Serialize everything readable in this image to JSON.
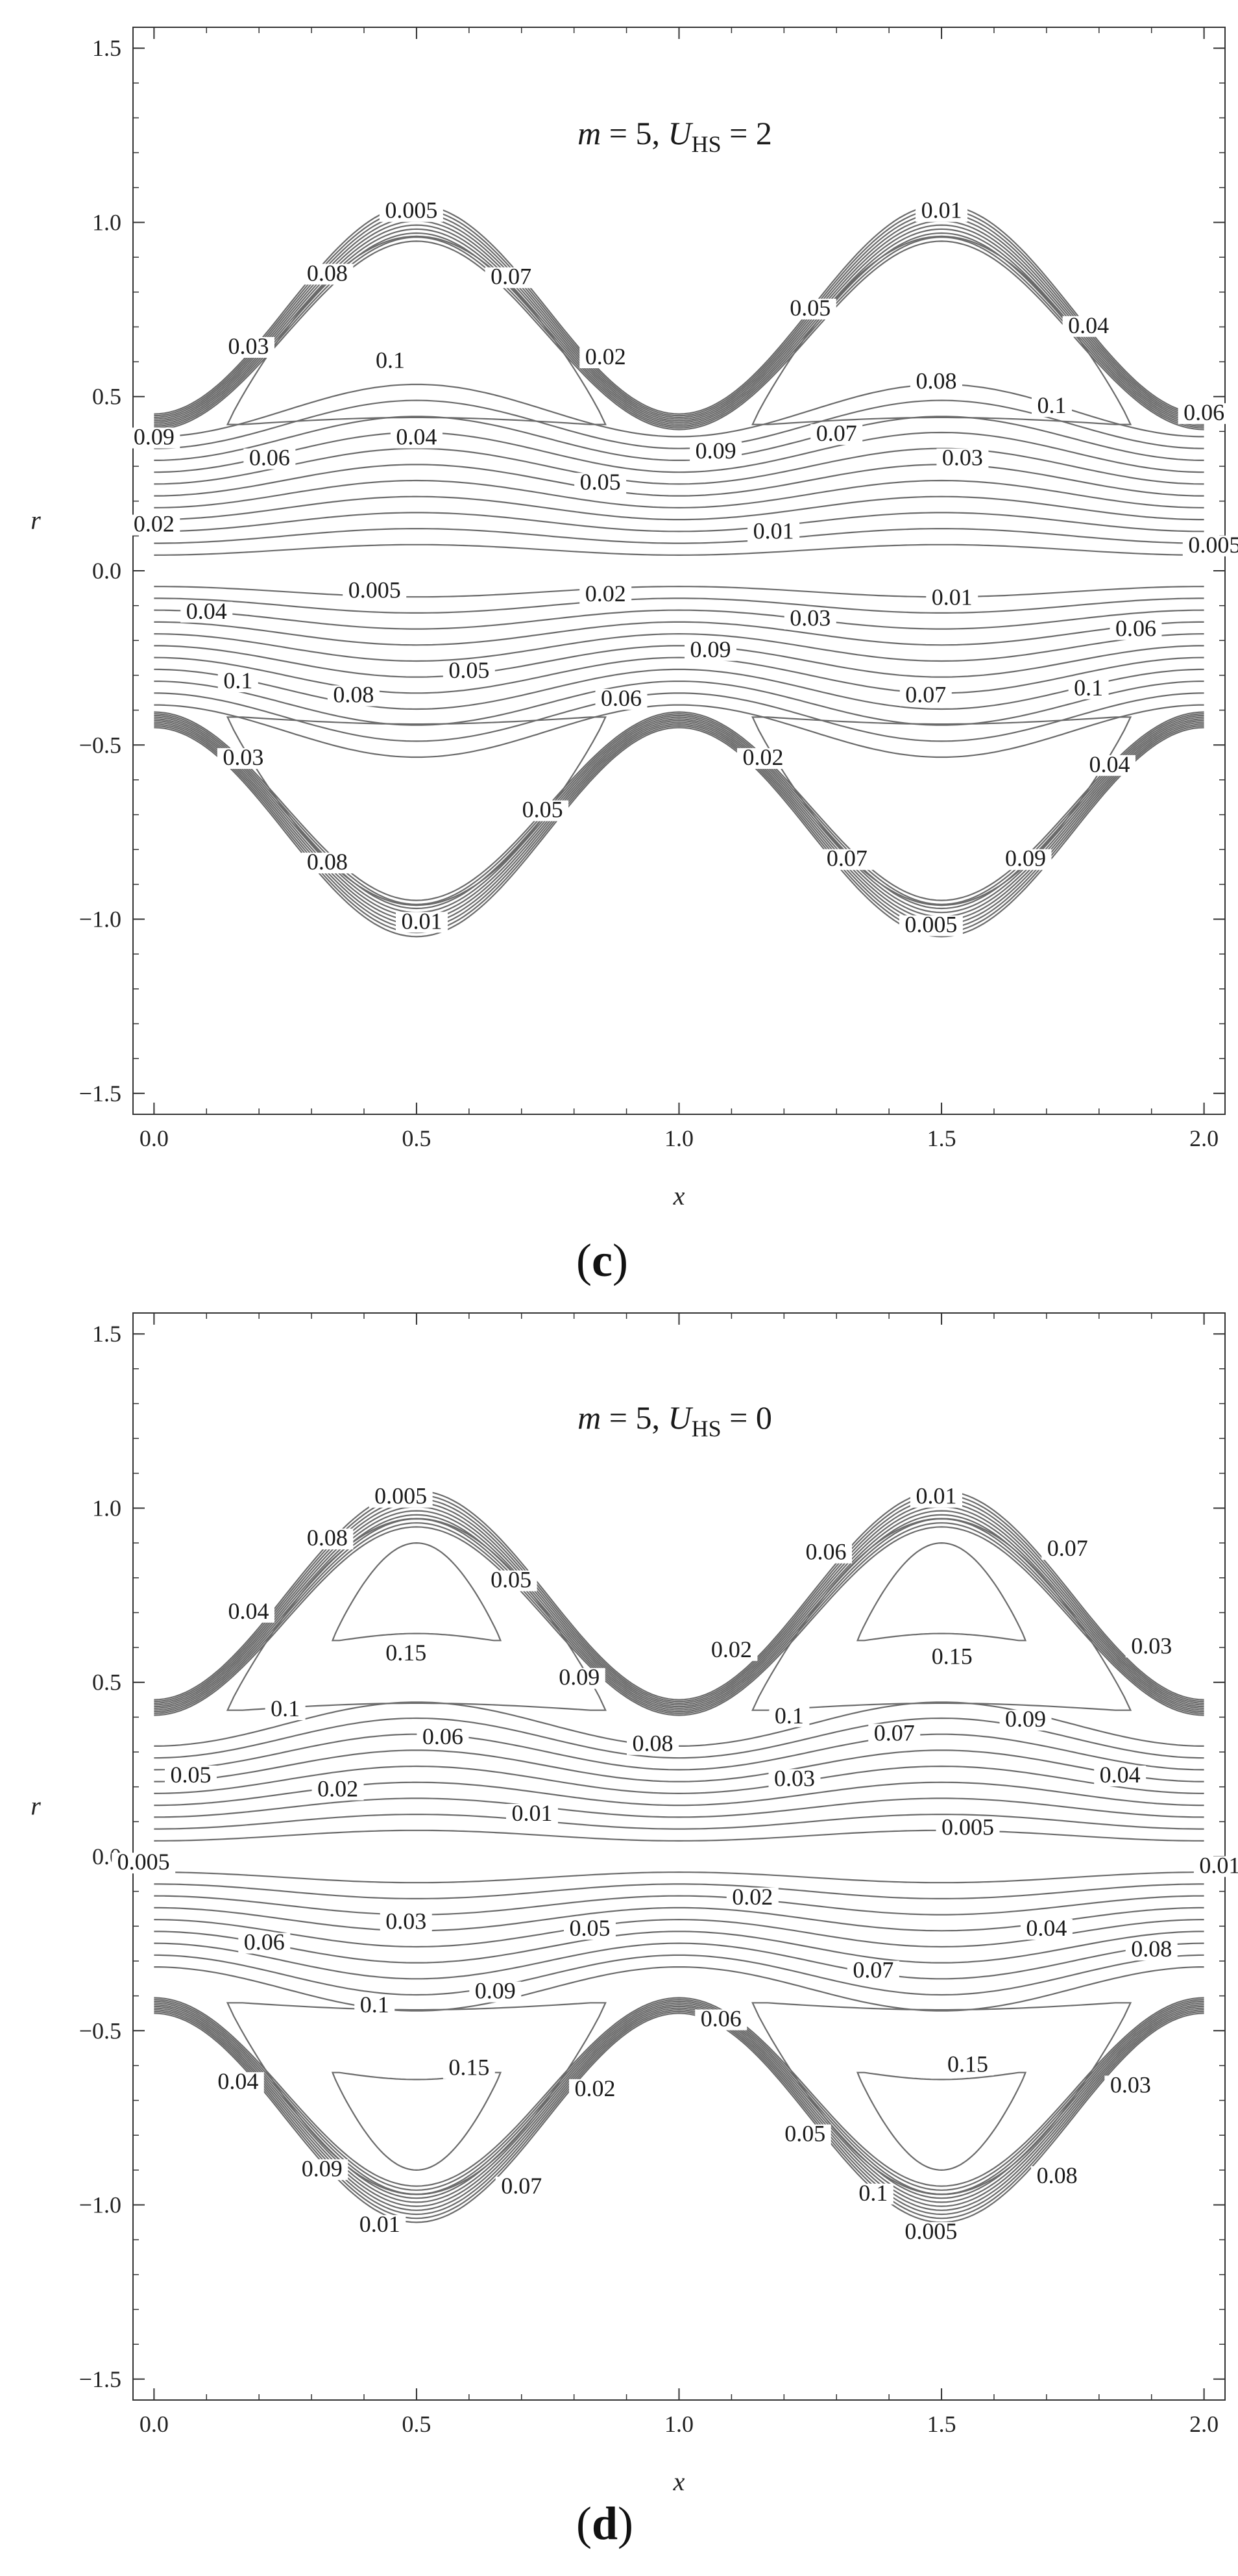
{
  "chart_data": [
    {
      "type": "contour",
      "panel": "(c)",
      "caption_letter": "c",
      "title_m": "m",
      "title_m_value": "5",
      "title_u": "U",
      "title_u_sub": "HS",
      "title_u_value": "2",
      "xlabel": "x",
      "ylabel": "r",
      "xlim": [
        -0.04,
        2.04
      ],
      "ylim": [
        -1.56,
        1.56
      ],
      "xticks": [
        "0.0",
        "0.5",
        "1.0",
        "1.5",
        "2.0"
      ],
      "xtick_values": [
        0,
        0.5,
        1.0,
        1.5,
        2.0
      ],
      "yticks": [
        "-1.5",
        "-1.0",
        "-0.5",
        "0.0",
        "0.5",
        "1.0",
        "1.5"
      ],
      "ytick_values": [
        -1.5,
        -1.0,
        -0.5,
        0.0,
        0.5,
        1.0,
        1.5
      ],
      "wall": "r = 0.75 + 0.3 cos(2πx - π)",
      "trapped_bolus": false,
      "contour_labels": [
        {
          "text": "0.005",
          "x": 0.49,
          "y": 1.02
        },
        {
          "text": "0.01",
          "x": 1.5,
          "y": 1.02
        },
        {
          "text": "0.08",
          "x": 0.33,
          "y": 0.84
        },
        {
          "text": "0.07",
          "x": 0.68,
          "y": 0.83
        },
        {
          "text": "0.05",
          "x": 1.25,
          "y": 0.74
        },
        {
          "text": "0.04",
          "x": 1.78,
          "y": 0.69
        },
        {
          "text": "0.03",
          "x": 0.18,
          "y": 0.63
        },
        {
          "text": "0.02",
          "x": 0.86,
          "y": 0.6
        },
        {
          "text": "0.1",
          "x": 0.45,
          "y": 0.59
        },
        {
          "text": "0.08",
          "x": 1.49,
          "y": 0.53
        },
        {
          "text": "0.1",
          "x": 1.71,
          "y": 0.46
        },
        {
          "text": "0.06",
          "x": 2.0,
          "y": 0.44
        },
        {
          "text": "0.09",
          "x": 0.0,
          "y": 0.37
        },
        {
          "text": "0.06",
          "x": 0.22,
          "y": 0.31
        },
        {
          "text": "0.04",
          "x": 0.5,
          "y": 0.37
        },
        {
          "text": "0.09",
          "x": 1.07,
          "y": 0.33
        },
        {
          "text": "0.07",
          "x": 1.3,
          "y": 0.38
        },
        {
          "text": "0.03",
          "x": 1.54,
          "y": 0.31
        },
        {
          "text": "0.05",
          "x": 0.85,
          "y": 0.24
        },
        {
          "text": "0.02",
          "x": 0.0,
          "y": 0.12
        },
        {
          "text": "0.01",
          "x": 1.18,
          "y": 0.1
        },
        {
          "text": "0.005",
          "x": 2.02,
          "y": 0.06
        },
        {
          "text": "0.005",
          "x": 0.42,
          "y": -0.07
        },
        {
          "text": "0.02",
          "x": 0.86,
          "y": -0.08
        },
        {
          "text": "0.01",
          "x": 1.52,
          "y": -0.09
        },
        {
          "text": "0.04",
          "x": 0.1,
          "y": -0.13
        },
        {
          "text": "0.03",
          "x": 1.25,
          "y": -0.15
        },
        {
          "text": "0.06",
          "x": 1.87,
          "y": -0.18
        },
        {
          "text": "0.09",
          "x": 1.06,
          "y": -0.24
        },
        {
          "text": "0.05",
          "x": 0.6,
          "y": -0.3
        },
        {
          "text": "0.1",
          "x": 0.16,
          "y": -0.33
        },
        {
          "text": "0.08",
          "x": 0.38,
          "y": -0.37
        },
        {
          "text": "0.06",
          "x": 0.89,
          "y": -0.38
        },
        {
          "text": "0.07",
          "x": 1.47,
          "y": -0.37
        },
        {
          "text": "0.1",
          "x": 1.78,
          "y": -0.35
        },
        {
          "text": "0.03",
          "x": 0.17,
          "y": -0.55
        },
        {
          "text": "0.02",
          "x": 1.16,
          "y": -0.55
        },
        {
          "text": "0.04",
          "x": 1.82,
          "y": -0.57
        },
        {
          "text": "0.05",
          "x": 0.74,
          "y": -0.7
        },
        {
          "text": "0.08",
          "x": 0.33,
          "y": -0.85
        },
        {
          "text": "0.07",
          "x": 1.32,
          "y": -0.84
        },
        {
          "text": "0.09",
          "x": 1.66,
          "y": -0.84
        },
        {
          "text": "0.01",
          "x": 0.51,
          "y": -1.02
        },
        {
          "text": "0.005",
          "x": 1.48,
          "y": -1.03
        }
      ]
    },
    {
      "type": "contour",
      "panel": "(d)",
      "caption_letter": "d",
      "title_m": "m",
      "title_m_value": "5",
      "title_u": "U",
      "title_u_sub": "HS",
      "title_u_value": "0",
      "xlabel": "x",
      "ylabel": "r",
      "xlim": [
        -0.04,
        2.04
      ],
      "ylim": [
        -1.56,
        1.56
      ],
      "xticks": [
        "0.0",
        "0.5",
        "1.0",
        "1.5",
        "2.0"
      ],
      "xtick_values": [
        0,
        0.5,
        1.0,
        1.5,
        2.0
      ],
      "yticks": [
        "-1.5",
        "-1.0",
        "-0.5",
        "0.0",
        "0.5",
        "1.0",
        "1.5"
      ],
      "ytick_values": [
        -1.5,
        -1.0,
        -0.5,
        0.0,
        0.5,
        1.0,
        1.5
      ],
      "wall": "r = 0.75 + 0.3 cos(2πx - π)",
      "trapped_bolus": true,
      "contour_labels": [
        {
          "text": "0.005",
          "x": 0.47,
          "y": 1.02
        },
        {
          "text": "0.01",
          "x": 1.49,
          "y": 1.02
        },
        {
          "text": "0.08",
          "x": 0.33,
          "y": 0.9
        },
        {
          "text": "0.07",
          "x": 1.74,
          "y": 0.87
        },
        {
          "text": "0.06",
          "x": 1.28,
          "y": 0.86
        },
        {
          "text": "0.05",
          "x": 0.68,
          "y": 0.78
        },
        {
          "text": "0.04",
          "x": 0.18,
          "y": 0.69
        },
        {
          "text": "0.02",
          "x": 1.1,
          "y": 0.58
        },
        {
          "text": "0.03",
          "x": 1.9,
          "y": 0.59
        },
        {
          "text": "0.15",
          "x": 0.48,
          "y": 0.57
        },
        {
          "text": "0.15",
          "x": 1.52,
          "y": 0.56
        },
        {
          "text": "0.09",
          "x": 0.81,
          "y": 0.5
        },
        {
          "text": "0.1",
          "x": 0.25,
          "y": 0.41
        },
        {
          "text": "0.1",
          "x": 1.21,
          "y": 0.39
        },
        {
          "text": "0.09",
          "x": 1.66,
          "y": 0.38
        },
        {
          "text": "0.06",
          "x": 0.55,
          "y": 0.33
        },
        {
          "text": "0.08",
          "x": 0.95,
          "y": 0.31
        },
        {
          "text": "0.07",
          "x": 1.41,
          "y": 0.34
        },
        {
          "text": "0.05",
          "x": 0.07,
          "y": 0.22
        },
        {
          "text": "0.04",
          "x": 1.84,
          "y": 0.22
        },
        {
          "text": "0.02",
          "x": 0.35,
          "y": 0.18
        },
        {
          "text": "0.03",
          "x": 1.22,
          "y": 0.21
        },
        {
          "text": "0.01",
          "x": 0.72,
          "y": 0.11
        },
        {
          "text": "0.005",
          "x": 1.55,
          "y": 0.07
        },
        {
          "text": "0.005",
          "x": -0.02,
          "y": -0.03
        },
        {
          "text": "0.01",
          "x": 2.03,
          "y": -0.04
        },
        {
          "text": "0.02",
          "x": 1.14,
          "y": -0.13
        },
        {
          "text": "0.03",
          "x": 0.48,
          "y": -0.2
        },
        {
          "text": "0.05",
          "x": 0.83,
          "y": -0.22
        },
        {
          "text": "0.04",
          "x": 1.7,
          "y": -0.22
        },
        {
          "text": "0.06",
          "x": 0.21,
          "y": -0.26
        },
        {
          "text": "0.08",
          "x": 1.9,
          "y": -0.28
        },
        {
          "text": "0.07",
          "x": 1.37,
          "y": -0.34
        },
        {
          "text": "0.09",
          "x": 0.65,
          "y": -0.4
        },
        {
          "text": "0.1",
          "x": 0.42,
          "y": -0.44
        },
        {
          "text": "0.06",
          "x": 1.08,
          "y": -0.48
        },
        {
          "text": "0.15",
          "x": 0.6,
          "y": -0.62
        },
        {
          "text": "0.15",
          "x": 1.55,
          "y": -0.61
        },
        {
          "text": "0.04",
          "x": 0.16,
          "y": -0.66
        },
        {
          "text": "0.02",
          "x": 0.84,
          "y": -0.68
        },
        {
          "text": "0.03",
          "x": 1.86,
          "y": -0.67
        },
        {
          "text": "0.05",
          "x": 1.24,
          "y": -0.81
        },
        {
          "text": "0.09",
          "x": 0.32,
          "y": -0.91
        },
        {
          "text": "0.07",
          "x": 0.7,
          "y": -0.96
        },
        {
          "text": "0.1",
          "x": 1.37,
          "y": -0.98
        },
        {
          "text": "0.08",
          "x": 1.72,
          "y": -0.93
        },
        {
          "text": "0.01",
          "x": 0.43,
          "y": -1.07
        },
        {
          "text": "0.005",
          "x": 1.48,
          "y": -1.09
        }
      ]
    }
  ]
}
